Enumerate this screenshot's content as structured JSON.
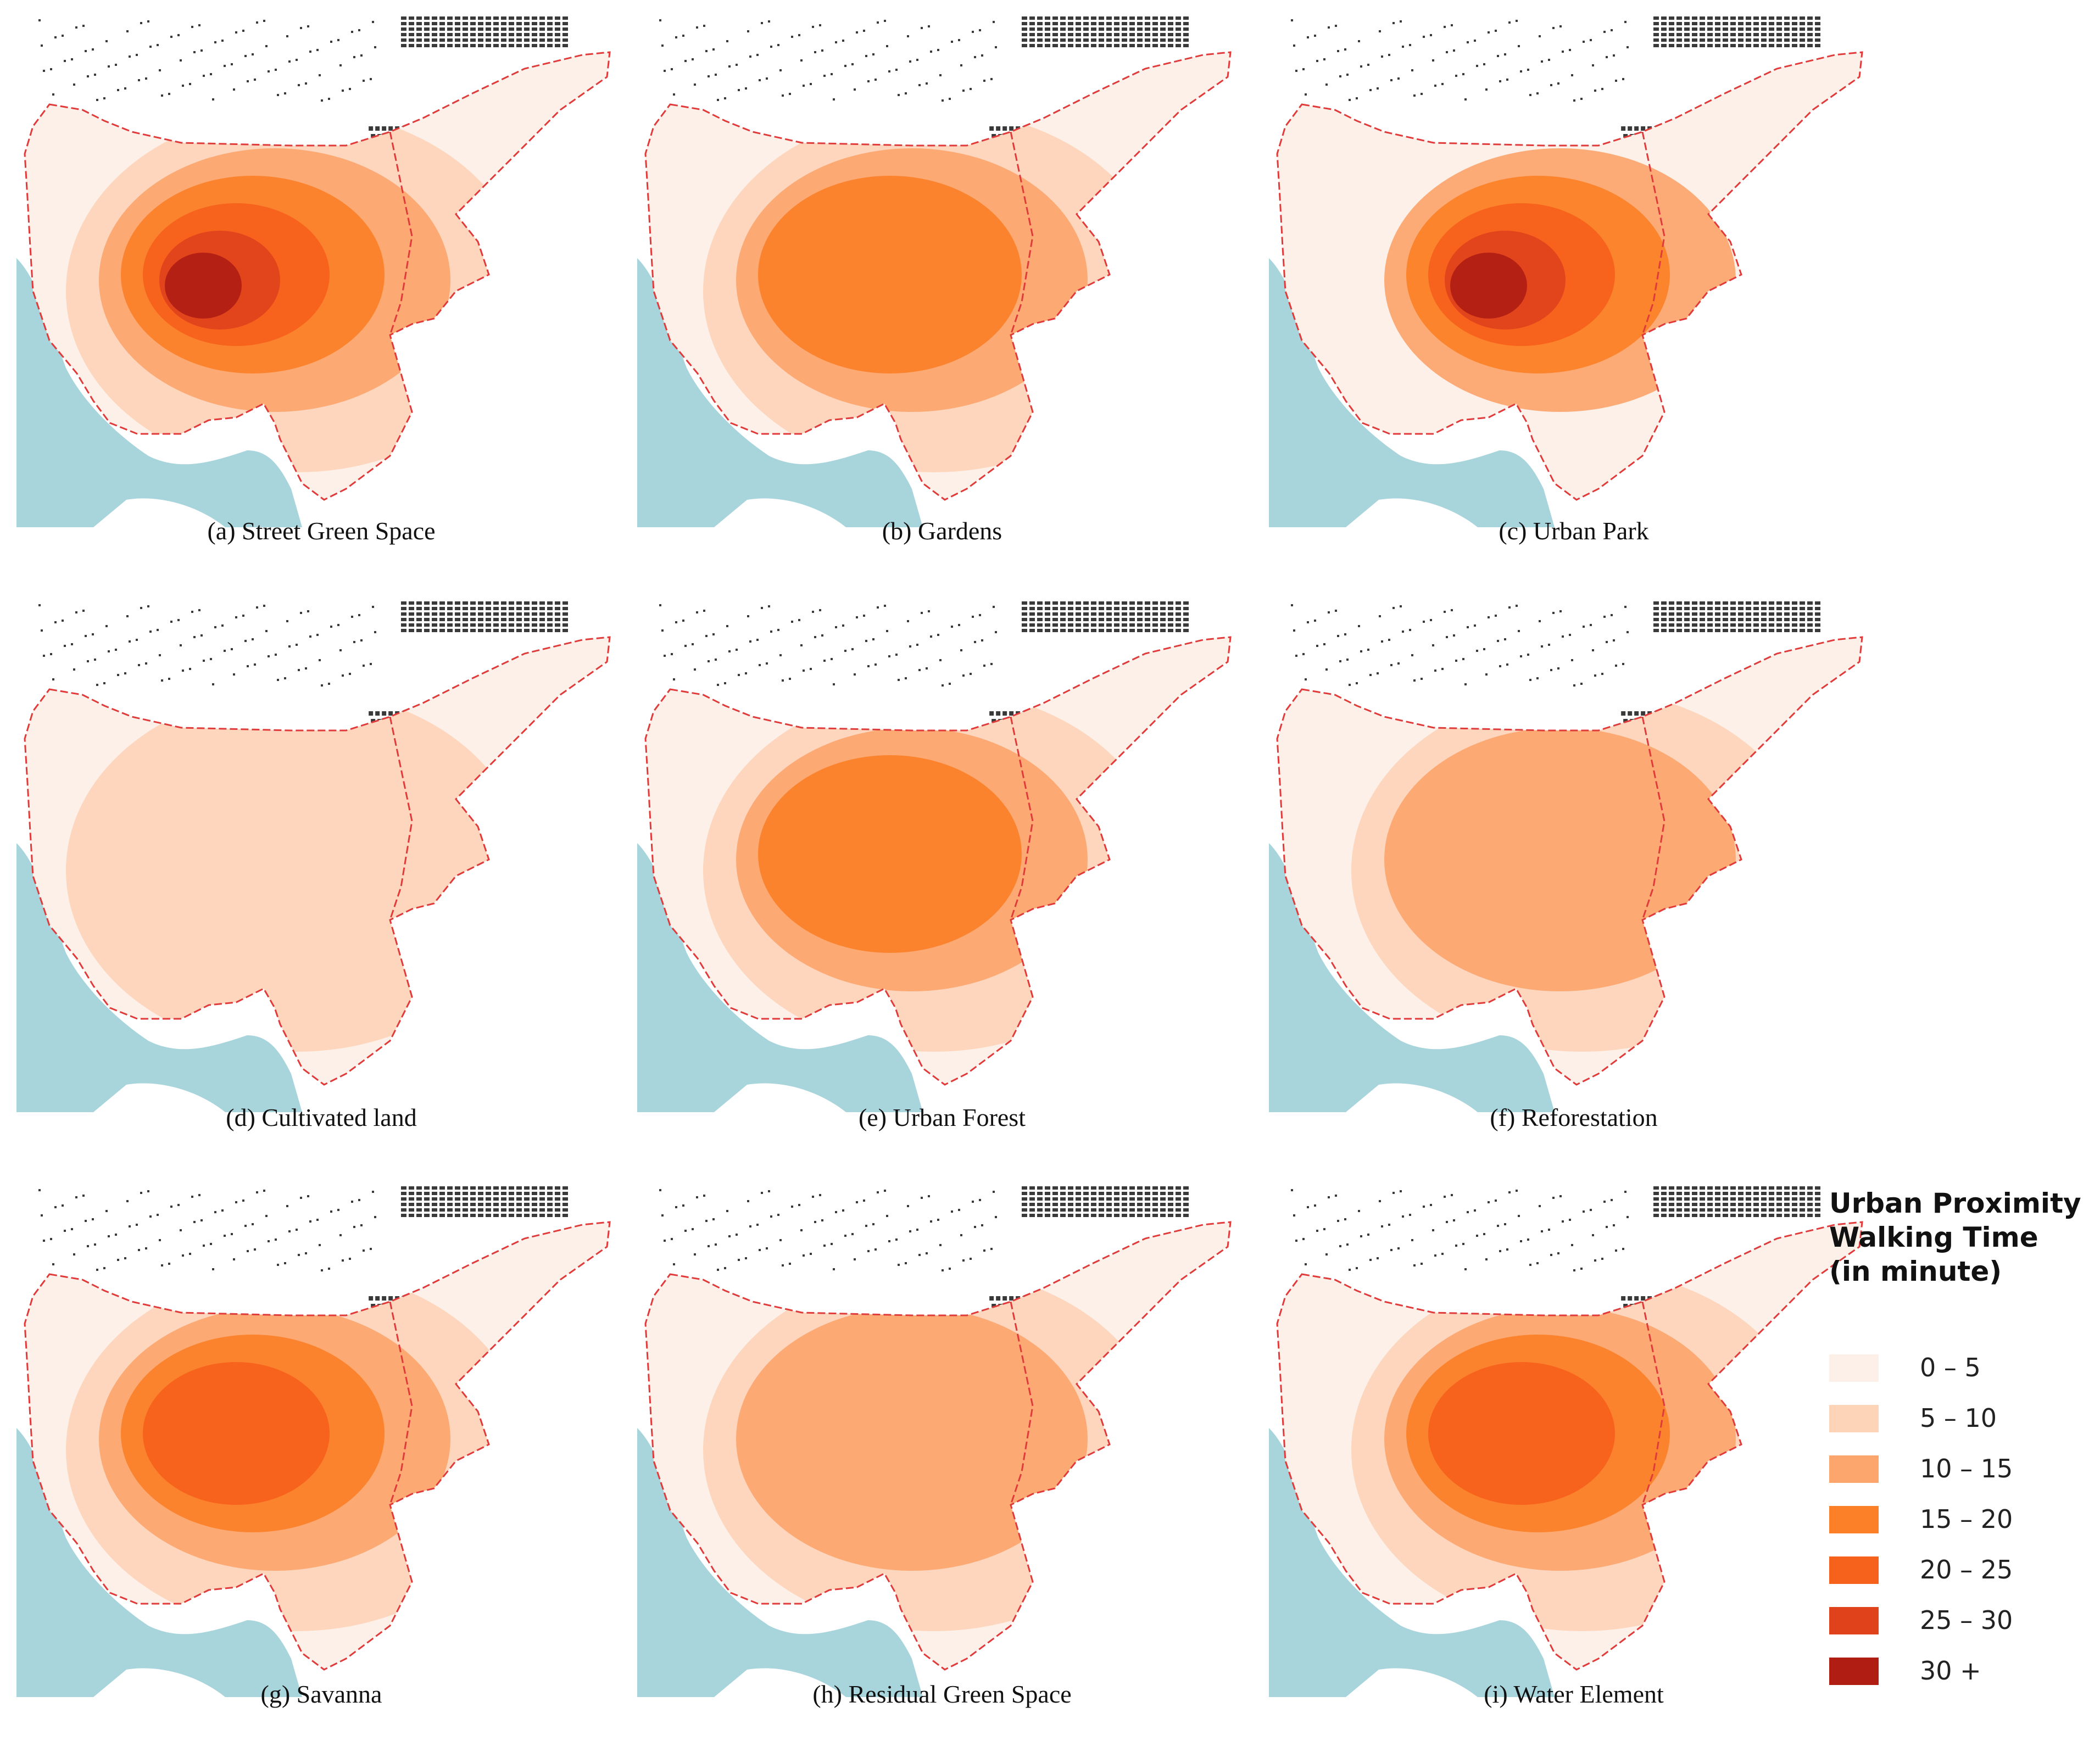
{
  "panels": [
    {
      "caption": "(a) Street Green Space",
      "levels": [
        1,
        2,
        3,
        4,
        5,
        6,
        7
      ]
    },
    {
      "caption": "(b) Gardens",
      "levels": [
        1,
        2,
        3,
        4
      ]
    },
    {
      "caption": "(c) Urban Park",
      "levels": [
        1,
        3,
        4,
        5,
        6,
        7
      ]
    },
    {
      "caption": "(d) Cultivated land",
      "levels": [
        1,
        2
      ]
    },
    {
      "caption": "(e) Urban Forest",
      "levels": [
        1,
        2,
        3,
        4
      ]
    },
    {
      "caption": "(f) Reforestation",
      "levels": [
        1,
        2,
        3
      ]
    },
    {
      "caption": "(g) Savanna",
      "levels": [
        1,
        2,
        3,
        4,
        5
      ]
    },
    {
      "caption": "(h) Residual Green Space",
      "levels": [
        1,
        2,
        3
      ]
    },
    {
      "caption": "(i) Water Element",
      "levels": [
        1,
        2,
        3,
        4,
        5
      ]
    }
  ],
  "legend": {
    "title_lines": [
      "Urban Proximity",
      "Walking Time",
      "(in minute)"
    ],
    "classes": [
      {
        "label": "0 – 5",
        "color": "#fdf0e8"
      },
      {
        "label": "5 – 10",
        "color": "#fdd4b8"
      },
      {
        "label": "10 – 15",
        "color": "#fca56c"
      },
      {
        "label": "15 – 20",
        "color": "#fc8027"
      },
      {
        "label": "20 – 25",
        "color": "#f6611b"
      },
      {
        "label": "25 – 30",
        "color": "#e0421c"
      },
      {
        "label": "30 +",
        "color": "#b01d13"
      }
    ]
  },
  "colors": {
    "water": "#a8d4dc",
    "boundary": "#e03a3a",
    "buildings": "#3a3a3a"
  }
}
